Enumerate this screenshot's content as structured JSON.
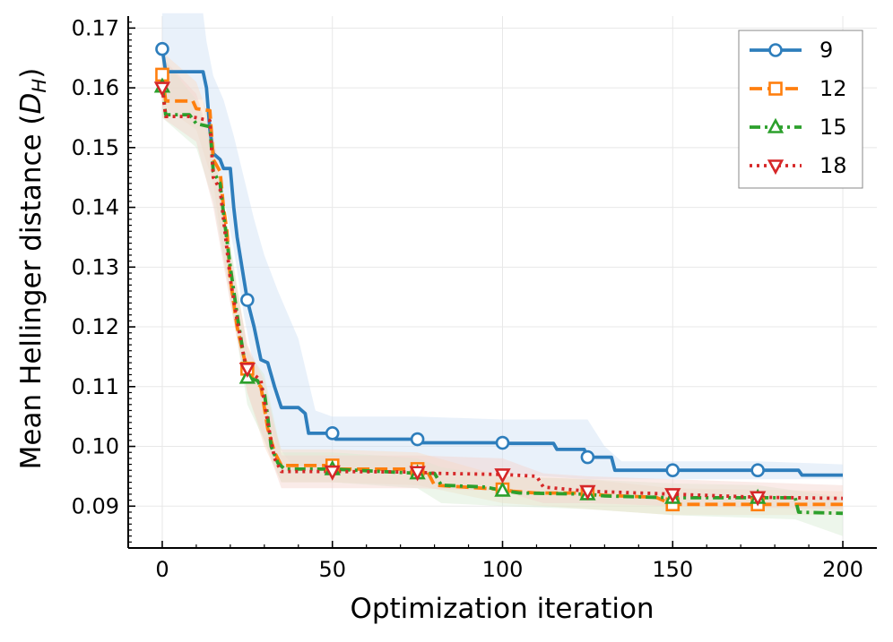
{
  "chart_data": {
    "type": "line",
    "title": "",
    "xlabel": "Optimization iteration",
    "ylabel_main": "Mean Hellinger distance (",
    "ylabel_symbol": "D",
    "ylabel_sub": "H",
    "ylabel_close": ")",
    "xlim": [
      -10,
      210
    ],
    "ylim": [
      0.083,
      0.172
    ],
    "xticks": [
      0,
      50,
      100,
      150,
      200
    ],
    "xtick_labels": [
      "0",
      "50",
      "100",
      "150",
      "200"
    ],
    "yticks": [
      0.09,
      0.1,
      0.11,
      0.12,
      0.13,
      0.14,
      0.15,
      0.16,
      0.17
    ],
    "ytick_labels": [
      "0.09",
      "0.10",
      "0.11",
      "0.12",
      "0.13",
      "0.14",
      "0.15",
      "0.16",
      "0.17"
    ],
    "grid": true,
    "legend_position": "top-right",
    "series": [
      {
        "name": "9",
        "color": "#2e7ebc",
        "band_color": "#cfe1f3",
        "dash": "solid",
        "marker": "circle",
        "marker_x": [
          0,
          25,
          50,
          75,
          100,
          125,
          150,
          175
        ],
        "points": [
          [
            0,
            0.1665
          ],
          [
            1,
            0.1627
          ],
          [
            12,
            0.1627
          ],
          [
            13,
            0.16
          ],
          [
            14,
            0.153
          ],
          [
            15,
            0.149
          ],
          [
            17,
            0.148
          ],
          [
            18,
            0.1465
          ],
          [
            20,
            0.1465
          ],
          [
            21,
            0.14
          ],
          [
            22,
            0.135
          ],
          [
            24,
            0.128
          ],
          [
            25,
            0.1245
          ],
          [
            27,
            0.12
          ],
          [
            29,
            0.1145
          ],
          [
            31,
            0.114
          ],
          [
            33,
            0.11
          ],
          [
            35,
            0.1065
          ],
          [
            40,
            0.1065
          ],
          [
            42,
            0.1055
          ],
          [
            43,
            0.1022
          ],
          [
            50,
            0.1022
          ],
          [
            51,
            0.1012
          ],
          [
            75,
            0.1012
          ],
          [
            76,
            0.1006
          ],
          [
            100,
            0.1006
          ],
          [
            101,
            0.1005
          ],
          [
            115,
            0.1005
          ],
          [
            116,
            0.0995
          ],
          [
            124,
            0.0995
          ],
          [
            125,
            0.0982
          ],
          [
            132,
            0.0982
          ],
          [
            133,
            0.096
          ],
          [
            175,
            0.096
          ],
          [
            187,
            0.096
          ],
          [
            188,
            0.0952
          ],
          [
            200,
            0.0952
          ]
        ],
        "lower": [
          [
            0,
            0.158
          ],
          [
            12,
            0.158
          ],
          [
            14,
            0.148
          ],
          [
            18,
            0.142
          ],
          [
            21,
            0.133
          ],
          [
            24,
            0.122
          ],
          [
            27,
            0.113
          ],
          [
            30,
            0.106
          ],
          [
            34,
            0.1
          ],
          [
            38,
            0.097
          ],
          [
            45,
            0.096
          ],
          [
            50,
            0.096
          ],
          [
            75,
            0.096
          ],
          [
            100,
            0.0955
          ],
          [
            125,
            0.0945
          ],
          [
            150,
            0.0945
          ],
          [
            175,
            0.0945
          ],
          [
            200,
            0.0945
          ]
        ],
        "upper": [
          [
            0,
            0.1725
          ],
          [
            12,
            0.1725
          ],
          [
            13,
            0.1678
          ],
          [
            15,
            0.162
          ],
          [
            18,
            0.158
          ],
          [
            21,
            0.152
          ],
          [
            24,
            0.145
          ],
          [
            27,
            0.138
          ],
          [
            30,
            0.132
          ],
          [
            34,
            0.126
          ],
          [
            40,
            0.118
          ],
          [
            45,
            0.106
          ],
          [
            50,
            0.105
          ],
          [
            75,
            0.105
          ],
          [
            100,
            0.1045
          ],
          [
            125,
            0.1045
          ],
          [
            130,
            0.1
          ],
          [
            135,
            0.0975
          ],
          [
            150,
            0.0975
          ],
          [
            175,
            0.0975
          ],
          [
            200,
            0.097
          ]
        ]
      },
      {
        "name": "12",
        "color": "#ff7f0e",
        "band_color": "#fbdcc4",
        "dash": "dashed",
        "marker": "square",
        "marker_x": [
          0,
          25,
          50,
          75,
          100,
          125,
          150,
          175
        ],
        "points": [
          [
            0,
            0.1622
          ],
          [
            1,
            0.1578
          ],
          [
            9,
            0.1578
          ],
          [
            10,
            0.1565
          ],
          [
            14,
            0.1562
          ],
          [
            15,
            0.148
          ],
          [
            17,
            0.146
          ],
          [
            18,
            0.14
          ],
          [
            19,
            0.136
          ],
          [
            20,
            0.128
          ],
          [
            22,
            0.12
          ],
          [
            24,
            0.115
          ],
          [
            25,
            0.113
          ],
          [
            27,
            0.111
          ],
          [
            29,
            0.11
          ],
          [
            31,
            0.103
          ],
          [
            33,
            0.099
          ],
          [
            35,
            0.0968
          ],
          [
            50,
            0.0968
          ],
          [
            52,
            0.0962
          ],
          [
            75,
            0.0962
          ],
          [
            78,
            0.0957
          ],
          [
            80,
            0.0935
          ],
          [
            100,
            0.0928
          ],
          [
            103,
            0.0925
          ],
          [
            110,
            0.0922
          ],
          [
            125,
            0.0922
          ],
          [
            130,
            0.0918
          ],
          [
            145,
            0.0915
          ],
          [
            150,
            0.0903
          ],
          [
            200,
            0.0903
          ]
        ],
        "lower": [
          [
            0,
            0.157
          ],
          [
            10,
            0.153
          ],
          [
            15,
            0.144
          ],
          [
            20,
            0.124
          ],
          [
            25,
            0.109
          ],
          [
            30,
            0.1
          ],
          [
            35,
            0.094
          ],
          [
            50,
            0.094
          ],
          [
            75,
            0.0935
          ],
          [
            100,
            0.0905
          ],
          [
            125,
            0.0895
          ],
          [
            150,
            0.0885
          ],
          [
            200,
            0.0885
          ]
        ],
        "upper": [
          [
            0,
            0.166
          ],
          [
            10,
            0.161
          ],
          [
            15,
            0.153
          ],
          [
            20,
            0.133
          ],
          [
            25,
            0.117
          ],
          [
            30,
            0.109
          ],
          [
            35,
            0.0995
          ],
          [
            50,
            0.0995
          ],
          [
            75,
            0.099
          ],
          [
            100,
            0.095
          ],
          [
            125,
            0.0945
          ],
          [
            150,
            0.093
          ],
          [
            200,
            0.0925
          ]
        ]
      },
      {
        "name": "15",
        "color": "#2ca02c",
        "band_color": "#d6ecd2",
        "dash": "dashdot",
        "marker": "triangle-up",
        "marker_x": [
          0,
          25,
          50,
          75,
          100,
          125,
          150,
          175
        ],
        "points": [
          [
            0,
            0.1602
          ],
          [
            1,
            0.1555
          ],
          [
            8,
            0.1555
          ],
          [
            10,
            0.154
          ],
          [
            14,
            0.1535
          ],
          [
            15,
            0.146
          ],
          [
            17,
            0.144
          ],
          [
            18,
            0.139
          ],
          [
            20,
            0.13
          ],
          [
            22,
            0.122
          ],
          [
            24,
            0.115
          ],
          [
            25,
            0.1115
          ],
          [
            28,
            0.111
          ],
          [
            30,
            0.109
          ],
          [
            31,
            0.105
          ],
          [
            32,
            0.1
          ],
          [
            34,
            0.0972
          ],
          [
            36,
            0.0962
          ],
          [
            50,
            0.0962
          ],
          [
            75,
            0.0955
          ],
          [
            80,
            0.0955
          ],
          [
            82,
            0.0935
          ],
          [
            95,
            0.0932
          ],
          [
            100,
            0.0926
          ],
          [
            105,
            0.0922
          ],
          [
            125,
            0.092
          ],
          [
            130,
            0.0917
          ],
          [
            150,
            0.0914
          ],
          [
            165,
            0.0914
          ],
          [
            175,
            0.0914
          ],
          [
            186,
            0.0914
          ],
          [
            187,
            0.089
          ],
          [
            200,
            0.0888
          ]
        ],
        "lower": [
          [
            0,
            0.155
          ],
          [
            10,
            0.15
          ],
          [
            15,
            0.141
          ],
          [
            20,
            0.125
          ],
          [
            25,
            0.107
          ],
          [
            30,
            0.101
          ],
          [
            35,
            0.094
          ],
          [
            50,
            0.094
          ],
          [
            75,
            0.093
          ],
          [
            82,
            0.0905
          ],
          [
            100,
            0.09
          ],
          [
            125,
            0.0895
          ],
          [
            150,
            0.0885
          ],
          [
            175,
            0.088
          ],
          [
            186,
            0.0878
          ],
          [
            200,
            0.085
          ]
        ],
        "upper": [
          [
            0,
            0.165
          ],
          [
            10,
            0.158
          ],
          [
            15,
            0.15
          ],
          [
            20,
            0.134
          ],
          [
            25,
            0.116
          ],
          [
            30,
            0.112
          ],
          [
            35,
            0.099
          ],
          [
            50,
            0.099
          ],
          [
            75,
            0.098
          ],
          [
            82,
            0.0965
          ],
          [
            100,
            0.095
          ],
          [
            125,
            0.0945
          ],
          [
            150,
            0.0938
          ],
          [
            175,
            0.0935
          ],
          [
            200,
            0.0915
          ]
        ]
      },
      {
        "name": "18",
        "color": "#d62728",
        "band_color": "#f5d2cd",
        "dash": "dotted",
        "marker": "triangle-down",
        "marker_x": [
          0,
          25,
          50,
          75,
          100,
          125,
          150,
          175
        ],
        "points": [
          [
            0,
            0.16
          ],
          [
            1,
            0.1552
          ],
          [
            8,
            0.1552
          ],
          [
            10,
            0.155
          ],
          [
            14,
            0.1545
          ],
          [
            15,
            0.145
          ],
          [
            17,
            0.143
          ],
          [
            18,
            0.138
          ],
          [
            20,
            0.128
          ],
          [
            22,
            0.121
          ],
          [
            24,
            0.115
          ],
          [
            25,
            0.113
          ],
          [
            27,
            0.112
          ],
          [
            29,
            0.111
          ],
          [
            31,
            0.104
          ],
          [
            33,
            0.098
          ],
          [
            35,
            0.0958
          ],
          [
            50,
            0.0958
          ],
          [
            75,
            0.0957
          ],
          [
            80,
            0.0955
          ],
          [
            100,
            0.0953
          ],
          [
            110,
            0.095
          ],
          [
            112,
            0.0932
          ],
          [
            125,
            0.0925
          ],
          [
            150,
            0.092
          ],
          [
            175,
            0.0915
          ],
          [
            200,
            0.0913
          ]
        ],
        "lower": [
          [
            0,
            0.155
          ],
          [
            10,
            0.151
          ],
          [
            15,
            0.14
          ],
          [
            20,
            0.124
          ],
          [
            25,
            0.109
          ],
          [
            30,
            0.101
          ],
          [
            35,
            0.093
          ],
          [
            50,
            0.093
          ],
          [
            75,
            0.093
          ],
          [
            100,
            0.0925
          ],
          [
            112,
            0.0905
          ],
          [
            125,
            0.0905
          ],
          [
            150,
            0.09
          ],
          [
            200,
            0.0895
          ]
        ],
        "upper": [
          [
            0,
            0.165
          ],
          [
            10,
            0.159
          ],
          [
            15,
            0.15
          ],
          [
            20,
            0.132
          ],
          [
            25,
            0.117
          ],
          [
            30,
            0.111
          ],
          [
            35,
            0.0985
          ],
          [
            50,
            0.0985
          ],
          [
            75,
            0.0985
          ],
          [
            100,
            0.098
          ],
          [
            112,
            0.0955
          ],
          [
            125,
            0.095
          ],
          [
            150,
            0.0945
          ],
          [
            200,
            0.0935
          ]
        ]
      }
    ]
  }
}
